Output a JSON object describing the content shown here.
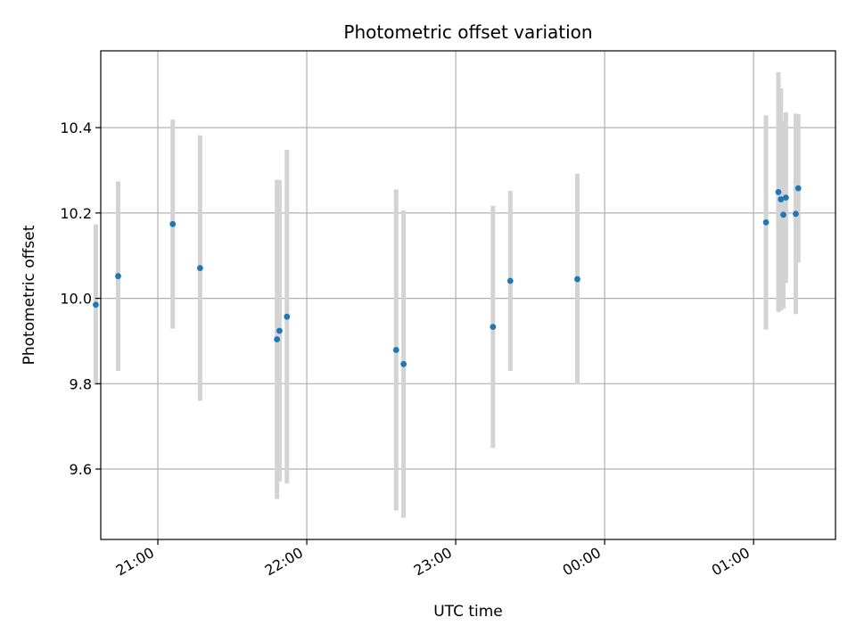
{
  "chart_data": {
    "type": "scatter",
    "title": "Photometric offset variation",
    "xlabel": "UTC time",
    "ylabel": "Photometric offset",
    "x_axis": "time",
    "xlim": [
      "20:37",
      "01:33"
    ],
    "ylim": [
      9.435,
      10.58
    ],
    "grid": true,
    "x_ticks": [
      "21:00",
      "22:00",
      "23:00",
      "00:00",
      "01:00"
    ],
    "y_ticks": [
      "9.6",
      "9.8",
      "10.0",
      "10.2",
      "10.4"
    ],
    "y_tick_values": [
      9.6,
      9.8,
      10.0,
      10.2,
      10.4
    ],
    "point_color": "#1f77b4",
    "errorbar_color": "#d3d3d3",
    "points": [
      {
        "time": "20:35",
        "y": 9.985,
        "err": 0.188
      },
      {
        "time": "20:44",
        "y": 10.052,
        "err": 0.222
      },
      {
        "time": "21:06",
        "y": 10.174,
        "err": 0.245
      },
      {
        "time": "21:17",
        "y": 10.071,
        "err": 0.311
      },
      {
        "time": "21:48",
        "y": 9.904,
        "err": 0.374
      },
      {
        "time": "21:49",
        "y": 9.924,
        "err": 0.353
      },
      {
        "time": "21:52",
        "y": 9.957,
        "err": 0.391
      },
      {
        "time": "22:36",
        "y": 9.879,
        "err": 0.376
      },
      {
        "time": "22:39",
        "y": 9.846,
        "err": 0.36
      },
      {
        "time": "23:15",
        "y": 9.933,
        "err": 0.284
      },
      {
        "time": "23:22",
        "y": 10.041,
        "err": 0.211
      },
      {
        "time": "23:49",
        "y": 10.045,
        "err": 0.247
      },
      {
        "time": "01:05",
        "y": 10.178,
        "err": 0.251
      },
      {
        "time": "01:10",
        "y": 10.249,
        "err": 0.281
      },
      {
        "time": "01:11",
        "y": 10.232,
        "err": 0.26
      },
      {
        "time": "01:12",
        "y": 10.196,
        "err": 0.22
      },
      {
        "time": "01:13",
        "y": 10.236,
        "err": 0.2
      },
      {
        "time": "01:17",
        "y": 10.198,
        "err": 0.235
      },
      {
        "time": "01:18",
        "y": 10.258,
        "err": 0.174
      }
    ]
  }
}
